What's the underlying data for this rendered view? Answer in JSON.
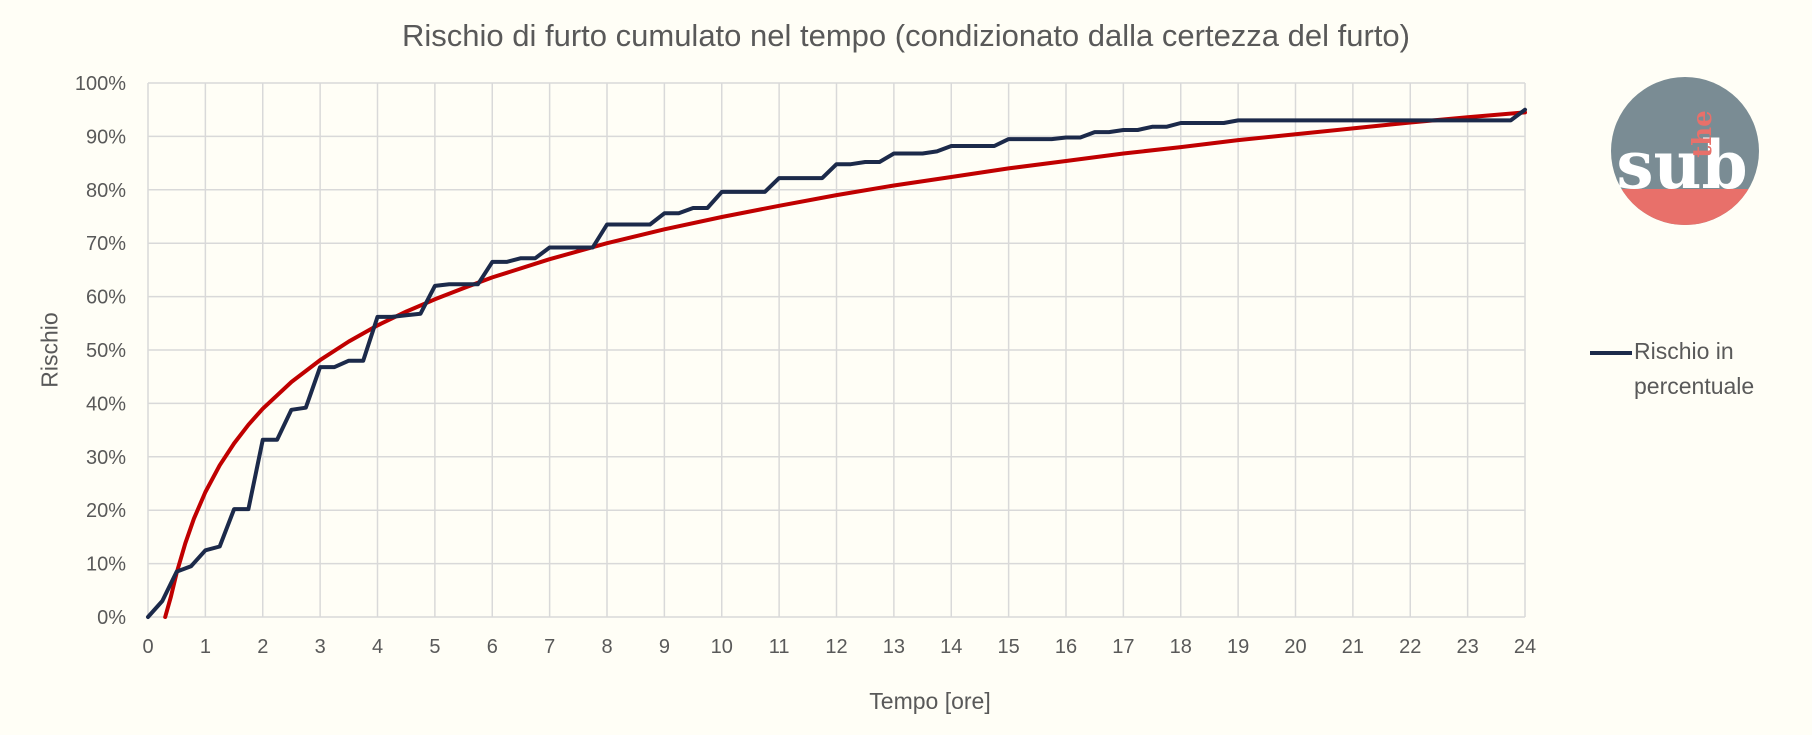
{
  "chart_data": {
    "type": "line",
    "title": "Rischio di furto cumulato nel tempo (condizionato dalla certezza del furto)",
    "xlabel": "Tempo [ore]",
    "ylabel": "Rischio",
    "xlim": [
      0,
      24
    ],
    "ylim": [
      0,
      100
    ],
    "x_ticks": [
      "0",
      "1",
      "2",
      "3",
      "4",
      "5",
      "6",
      "7",
      "8",
      "9",
      "10",
      "11",
      "12",
      "13",
      "14",
      "15",
      "16",
      "17",
      "18",
      "19",
      "20",
      "21",
      "22",
      "23",
      "24"
    ],
    "y_ticks": [
      "0%",
      "10%",
      "20%",
      "30%",
      "40%",
      "50%",
      "60%",
      "70%",
      "80%",
      "90%",
      "100%"
    ],
    "grid": true,
    "legend_position": "right",
    "series": [
      {
        "name": "Rischio in percentuale",
        "color": "#1c2a4a",
        "x": [
          0,
          0.25,
          0.5,
          0.75,
          1,
          1.25,
          1.5,
          1.75,
          2,
          2.25,
          2.5,
          2.75,
          3,
          3.25,
          3.5,
          3.75,
          4,
          4.25,
          4.5,
          4.75,
          5,
          5.25,
          5.5,
          5.75,
          6,
          6.25,
          6.5,
          6.75,
          7,
          7.25,
          7.5,
          7.75,
          8,
          8.25,
          8.5,
          8.75,
          9,
          9.25,
          9.5,
          9.75,
          10,
          10.25,
          10.5,
          10.75,
          11,
          11.25,
          11.5,
          11.75,
          12,
          12.25,
          12.5,
          12.75,
          13,
          13.25,
          13.5,
          13.75,
          14,
          14.25,
          14.5,
          14.75,
          15,
          15.25,
          15.5,
          15.75,
          16,
          16.25,
          16.5,
          16.75,
          17,
          17.25,
          17.5,
          17.75,
          18,
          18.25,
          18.5,
          18.75,
          19,
          19.25,
          19.5,
          19.75,
          20,
          20.25,
          20.5,
          20.75,
          21,
          21.25,
          21.5,
          21.75,
          22,
          22.25,
          22.5,
          22.75,
          23,
          23.25,
          23.5,
          23.75,
          24
        ],
        "values": [
          0,
          3,
          8.5,
          9.5,
          12.5,
          13.2,
          20.2,
          20.2,
          33.2,
          33.2,
          38.8,
          39.2,
          46.8,
          46.8,
          48,
          48,
          56.2,
          56.2,
          56.5,
          56.8,
          62,
          62.3,
          62.3,
          62.3,
          66.5,
          66.5,
          67.2,
          67.2,
          69.2,
          69.2,
          69.2,
          69.2,
          73.5,
          73.5,
          73.5,
          73.5,
          75.6,
          75.6,
          76.6,
          76.6,
          79.6,
          79.6,
          79.6,
          79.6,
          82.2,
          82.2,
          82.2,
          82.2,
          84.8,
          84.8,
          85.2,
          85.2,
          86.8,
          86.8,
          86.8,
          87.2,
          88.2,
          88.2,
          88.2,
          88.2,
          89.5,
          89.5,
          89.5,
          89.5,
          89.8,
          89.8,
          90.8,
          90.8,
          91.2,
          91.2,
          91.8,
          91.8,
          92.5,
          92.5,
          92.5,
          92.5,
          93,
          93,
          93,
          93,
          93,
          93,
          93,
          93,
          93,
          93,
          93,
          93,
          93,
          93,
          93,
          93,
          93,
          93,
          93,
          93,
          95
        ]
      },
      {
        "color": "#c00000",
        "trendline": "logarithmic",
        "x": [
          0.3,
          0.4,
          0.5,
          0.65,
          0.8,
          1,
          1.25,
          1.5,
          1.75,
          2,
          2.5,
          3,
          3.5,
          4,
          4.5,
          5,
          5.5,
          6,
          7,
          8,
          9,
          10,
          11,
          12,
          13,
          14,
          15,
          16,
          17,
          18,
          19,
          20,
          21,
          22,
          23,
          24
        ],
        "values": [
          0,
          3.8,
          8.3,
          13.8,
          18.4,
          23.4,
          28.4,
          32.5,
          36.0,
          39.0,
          44.0,
          48.1,
          51.6,
          54.6,
          57.2,
          59.5,
          61.6,
          63.6,
          67.0,
          70.0,
          72.6,
          74.9,
          77.0,
          79.0,
          80.8,
          82.4,
          84.0,
          85.4,
          86.8,
          88.0,
          89.3,
          90.4,
          91.5,
          92.6,
          93.6,
          94.5
        ]
      }
    ]
  },
  "logo": {
    "top_text": "the",
    "main_text": "sub",
    "circle_color": "#7a8c94",
    "bottom_color": "#e8706a"
  }
}
